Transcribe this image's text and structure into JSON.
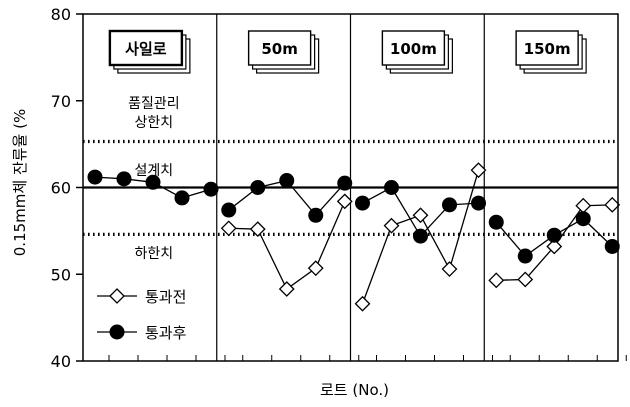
{
  "chart_data": {
    "type": "line",
    "panels": [
      "사일로",
      "50m",
      "100m",
      "150m"
    ],
    "ylabel": "0.15mm체 잔류율 (%",
    "xlabel": "로트 (No.)",
    "ylim": [
      40,
      80
    ],
    "yticks": [
      40,
      50,
      60,
      70,
      80
    ],
    "grid": false,
    "legend_position": "bottom-left",
    "reference_lines": [
      {
        "name": "품질관리 상한치",
        "line1": "품질관리",
        "line2": "상한치",
        "value": 65.3,
        "style": "dotted"
      },
      {
        "name": "설계치",
        "value": 60.0,
        "style": "solid"
      },
      {
        "name": "하한치",
        "value": 54.6,
        "style": "dotted"
      }
    ],
    "series": [
      {
        "name": "통과전",
        "marker": "open-diamond",
        "panels": [
          [],
          [
            55.3,
            55.2,
            48.3,
            50.7,
            58.4
          ],
          [
            46.6,
            55.6,
            56.8,
            50.6,
            62.0
          ],
          [
            49.3,
            49.4,
            53.2,
            57.9,
            58.0
          ]
        ]
      },
      {
        "name": "통과후",
        "marker": "filled-circle",
        "panels": [
          [
            61.2,
            61.0,
            60.6,
            58.8,
            59.8
          ],
          [
            57.4,
            60.0,
            60.8,
            56.8,
            60.5
          ],
          [
            58.2,
            60.0,
            54.4,
            58.0,
            58.2
          ],
          [
            56.0,
            52.1,
            54.5,
            56.4,
            53.2
          ]
        ]
      }
    ]
  }
}
